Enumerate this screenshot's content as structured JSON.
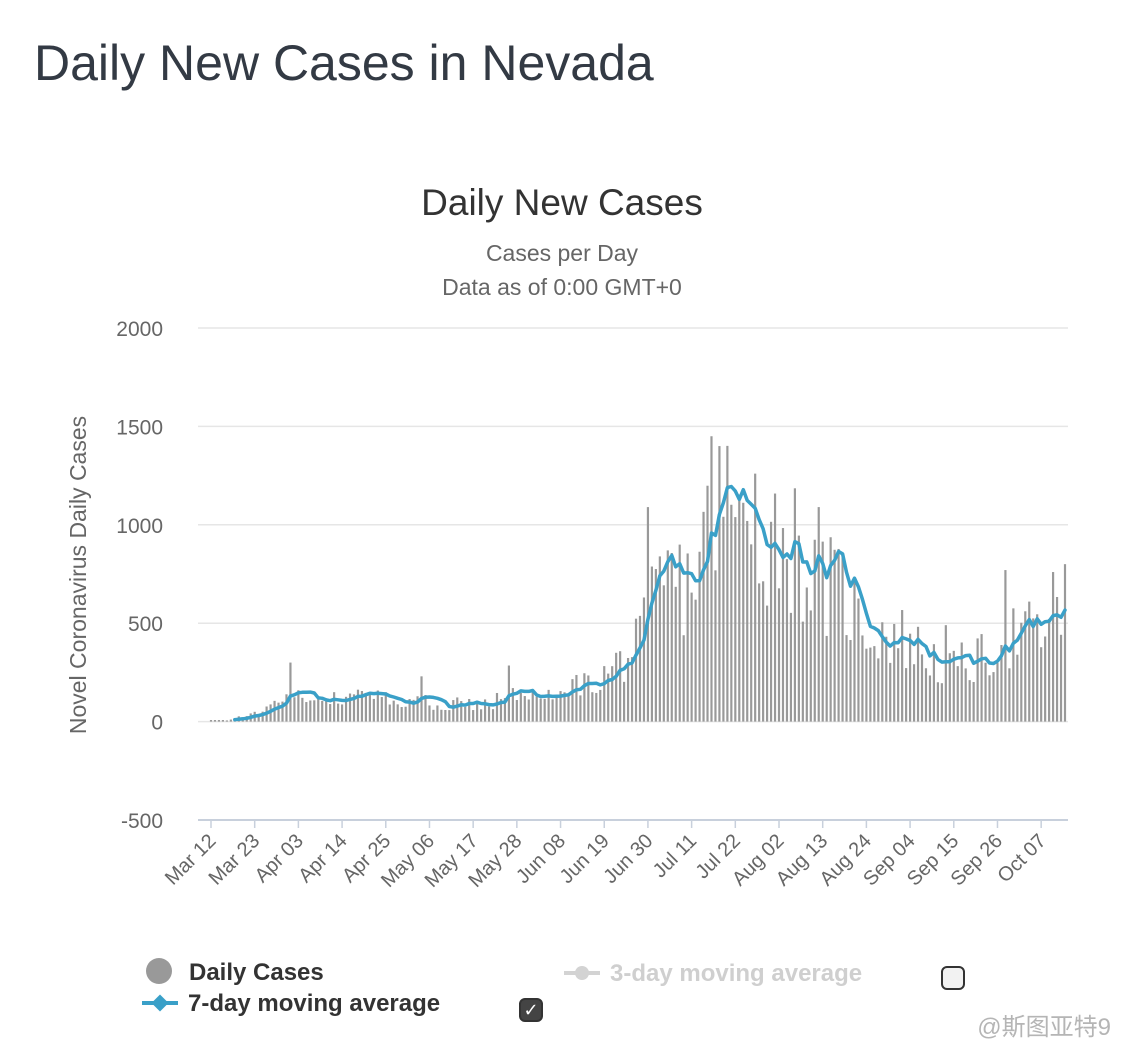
{
  "page": {
    "title": "Daily New Cases in Nevada"
  },
  "chart_data": {
    "type": "bar",
    "title": "Daily New Cases",
    "subtitle_lines": [
      "Cases per Day",
      "Data as of 0:00 GMT+0"
    ],
    "ylabel": "Novel Coronavirus Daily Cases",
    "xlabel": "",
    "ylim": [
      -500,
      2000
    ],
    "yticks": [
      2000,
      1500,
      1000,
      500,
      0,
      -500
    ],
    "grid": true,
    "x_start": "2020-03-12",
    "x_end": "2020-10-13",
    "x_tick_labels": [
      "Mar 12",
      "Mar 23",
      "Apr 03",
      "Apr 14",
      "Apr 25",
      "May 06",
      "May 17",
      "May 28",
      "Jun 08",
      "Jun 19",
      "Jun 30",
      "Jul 11",
      "Jul 22",
      "Aug 02",
      "Aug 13",
      "Aug 24",
      "Sep 04",
      "Sep 15",
      "Sep 26",
      "Oct 07"
    ],
    "series": [
      {
        "name": "Daily Cases",
        "kind": "bar",
        "color": "#999999",
        "anchors": [
          [
            "2020-03-12",
            0
          ],
          [
            "2020-03-16",
            5
          ],
          [
            "2020-03-20",
            30
          ],
          [
            "2020-03-24",
            55
          ],
          [
            "2020-03-28",
            90
          ],
          [
            "2020-04-01",
            140
          ],
          [
            "2020-04-05",
            150
          ],
          [
            "2020-04-10",
            145
          ],
          [
            "2020-04-15",
            150
          ],
          [
            "2020-04-20",
            130
          ],
          [
            "2020-04-25",
            125
          ],
          [
            "2020-05-01",
            120
          ],
          [
            "2020-05-06",
            110
          ],
          [
            "2020-05-12",
            100
          ],
          [
            "2020-05-17",
            105
          ],
          [
            "2020-05-22",
            110
          ],
          [
            "2020-05-25",
            140
          ],
          [
            "2020-05-31",
            125
          ],
          [
            "2020-06-04",
            130
          ],
          [
            "2020-06-09",
            160
          ],
          [
            "2020-06-14",
            200
          ],
          [
            "2020-06-19",
            250
          ],
          [
            "2020-06-24",
            350
          ],
          [
            "2020-06-28",
            420
          ],
          [
            "2020-07-01",
            650
          ],
          [
            "2020-07-04",
            760
          ],
          [
            "2020-07-08",
            750
          ],
          [
            "2020-07-11",
            780
          ],
          [
            "2020-07-14",
            950
          ],
          [
            "2020-07-17",
            1150
          ],
          [
            "2020-07-20",
            1170
          ],
          [
            "2020-07-24",
            1030
          ],
          [
            "2020-07-28",
            1020
          ],
          [
            "2020-08-01",
            1050
          ],
          [
            "2020-08-04",
            1030
          ],
          [
            "2020-08-08",
            900
          ],
          [
            "2020-08-11",
            750
          ],
          [
            "2020-08-15",
            730
          ],
          [
            "2020-08-19",
            700
          ],
          [
            "2020-08-22",
            560
          ],
          [
            "2020-08-26",
            500
          ],
          [
            "2020-08-30",
            490
          ],
          [
            "2020-09-03",
            450
          ],
          [
            "2020-09-07",
            380
          ],
          [
            "2020-09-11",
            330
          ],
          [
            "2020-09-13",
            270
          ],
          [
            "2020-09-17",
            310
          ],
          [
            "2020-09-21",
            330
          ],
          [
            "2020-09-25",
            400
          ],
          [
            "2020-09-29",
            470
          ],
          [
            "2020-10-03",
            480
          ],
          [
            "2020-10-07",
            490
          ],
          [
            "2020-10-13",
            530
          ]
        ],
        "spikes": [
          [
            "2020-04-01",
            300
          ],
          [
            "2020-05-04",
            230
          ],
          [
            "2020-05-26",
            285
          ],
          [
            "2020-06-30",
            1090
          ],
          [
            "2020-07-05",
            870
          ],
          [
            "2020-07-16",
            1450
          ],
          [
            "2020-07-18",
            1400
          ],
          [
            "2020-07-27",
            1260
          ],
          [
            "2020-08-12",
            1090
          ],
          [
            "2020-09-13",
            490
          ],
          [
            "2020-09-28",
            770
          ],
          [
            "2020-10-10",
            760
          ],
          [
            "2020-10-13",
            800
          ]
        ]
      },
      {
        "name": "7-day moving average",
        "kind": "line",
        "color": "#3aa0c8",
        "visible": true
      },
      {
        "name": "3-day moving average",
        "kind": "line",
        "color": "#d3d3d3",
        "visible": false
      }
    ]
  },
  "legend": {
    "daily_label": "Daily Cases",
    "ma7_label": "7-day moving average",
    "ma3_label": "3-day moving average",
    "ma7_checked": true,
    "ma3_checked": false,
    "check_mark": "✓"
  },
  "watermark": "@斯图亚特9"
}
